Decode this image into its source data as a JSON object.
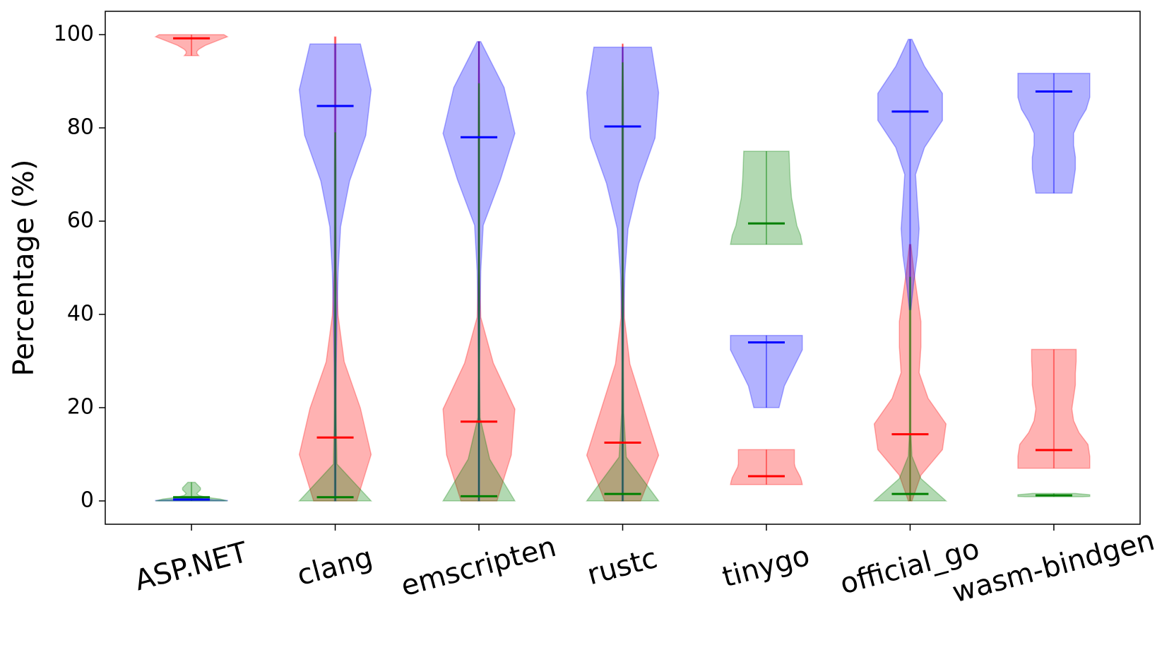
{
  "chart_data": {
    "type": "violin",
    "y_label": "Percentage (%)",
    "categories": [
      "ASP.NET",
      "clang",
      "emscripten",
      "rustc",
      "tinygo",
      "official_go",
      "wasm-bindgen"
    ],
    "ylim": [
      -5,
      105
    ],
    "yticks": [
      0,
      20,
      40,
      60,
      80,
      100
    ],
    "series": [
      {
        "color": "#ff0000",
        "values": [
          99.2,
          13.6,
          17,
          12.5,
          5.3,
          14.3,
          10.9
        ],
        "mins": [
          95.5,
          0,
          0,
          0,
          3.5,
          0,
          7
        ],
        "maxs": [
          100,
          99.5,
          98.5,
          98,
          11,
          55,
          32.5
        ],
        "shapes": [
          [
            0.2,
            0.15,
            0.15,
            0.2,
            0.3,
            0.4,
            0.55,
            0.7,
            0.85,
            1,
            0.9
          ],
          [
            0.6,
            1,
            0.7,
            0.25,
            0.08,
            0.03,
            0.02,
            0.02,
            0.02,
            0.02,
            0.02
          ],
          [
            0.5,
            0.9,
            1,
            0.4,
            0.05,
            0.02,
            0.02,
            0.02,
            0.02,
            0.02,
            0.01
          ],
          [
            0.5,
            1,
            0.6,
            0.2,
            0.05,
            0.02,
            0.02,
            0.02,
            0.02,
            0.02,
            0.01
          ],
          [
            1,
            0.98,
            0.95,
            0.9,
            0.85,
            0.8,
            0.78,
            0.78,
            0.78,
            0.78,
            0.78
          ],
          [
            0.05,
            0.3,
            0.9,
            1,
            0.5,
            0.25,
            0.3,
            0.3,
            0.2,
            0.1,
            0.02
          ],
          [
            1,
            1,
            0.95,
            0.7,
            0.55,
            0.5,
            0.55,
            0.6,
            0.6,
            0.62,
            0.62
          ]
        ]
      },
      {
        "color": "#0000ff",
        "values": [
          0.3,
          84.7,
          78,
          80.3,
          34,
          83.5,
          87.8
        ],
        "mins": [
          0,
          0,
          0,
          0,
          20,
          41,
          66
        ],
        "maxs": [
          0.5,
          98,
          98.5,
          97.3,
          35.5,
          99,
          91.7
        ],
        "shapes": [
          [
            0.9,
            1,
            1,
            0.9,
            0.8,
            0.6,
            0.5,
            0.4,
            0.3,
            0.3,
            0.3
          ],
          [
            0.02,
            0.02,
            0.02,
            0.03,
            0.05,
            0.08,
            0.15,
            0.4,
            0.85,
            1,
            0.7
          ],
          [
            0.02,
            0.02,
            0.02,
            0.02,
            0.03,
            0.05,
            0.12,
            0.6,
            1,
            0.7,
            0.05
          ],
          [
            0.02,
            0.02,
            0.02,
            0.02,
            0.03,
            0.06,
            0.15,
            0.45,
            0.9,
            1,
            0.8
          ],
          [
            0.35,
            0.4,
            0.45,
            0.5,
            0.6,
            0.7,
            0.8,
            0.9,
            1,
            1,
            1
          ],
          [
            0.02,
            0.1,
            0.2,
            0.25,
            0.2,
            0.15,
            0.4,
            0.9,
            0.9,
            0.4,
            0.05
          ],
          [
            0.5,
            0.55,
            0.6,
            0.6,
            0.55,
            0.55,
            0.7,
            0.9,
            1,
            1,
            1
          ]
        ]
      },
      {
        "color": "#008000",
        "values": [
          0.8,
          0.8,
          1,
          1.5,
          59.5,
          1.5,
          1.2
        ],
        "mins": [
          0,
          0,
          0,
          0,
          55,
          0,
          0.9
        ],
        "maxs": [
          4,
          79,
          89.5,
          94,
          75,
          48,
          1.6
        ],
        "shapes": [
          [
            1,
            0.8,
            0.4,
            0.2,
            0.15,
            0.2,
            0.25,
            0.25,
            0.2,
            0.15,
            0.1
          ],
          [
            1,
            0.05,
            0.03,
            0.02,
            0.02,
            0.02,
            0.02,
            0.02,
            0.02,
            0.02,
            0.01
          ],
          [
            1,
            0.3,
            0.03,
            0.02,
            0.02,
            0.02,
            0.02,
            0.02,
            0.02,
            0.02,
            0.01
          ],
          [
            1,
            0.1,
            0.03,
            0.02,
            0.02,
            0.02,
            0.02,
            0.02,
            0.02,
            0.02,
            0.01
          ],
          [
            1,
            0.95,
            0.85,
            0.8,
            0.75,
            0.7,
            0.68,
            0.66,
            0.65,
            0.64,
            0.63
          ],
          [
            1,
            0.3,
            0.05,
            0.02,
            0.02,
            0.02,
            0.02,
            0.02,
            0.02,
            0.02,
            0.01
          ],
          [
            0.8,
            1,
            1,
            1,
            1,
            1,
            1,
            0.9,
            0.8,
            0.7,
            0.6
          ]
        ]
      }
    ]
  }
}
